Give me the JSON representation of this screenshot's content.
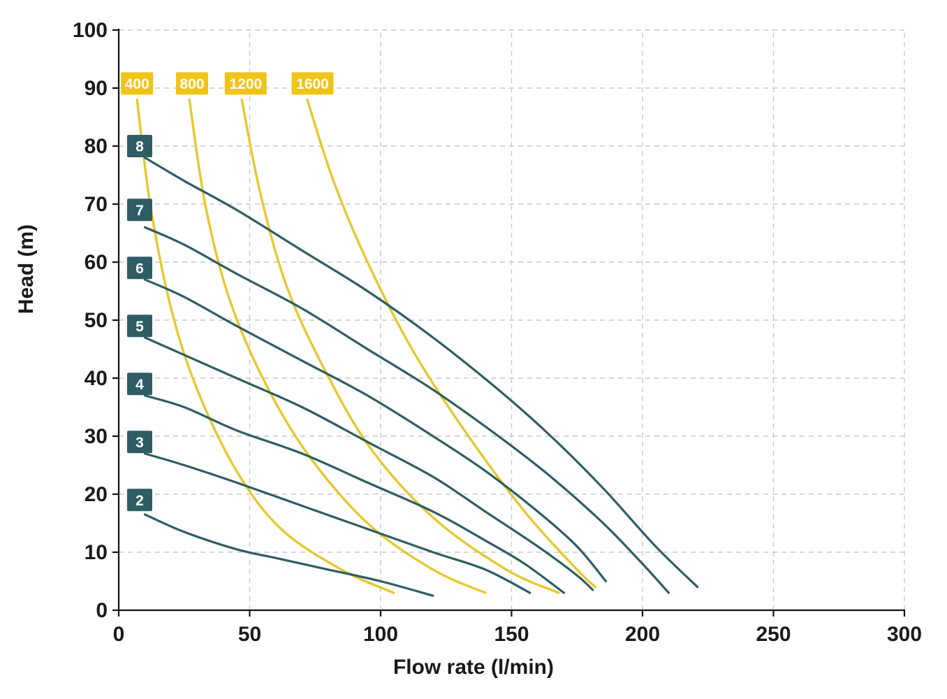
{
  "chart_data": {
    "type": "line",
    "title": "",
    "xlabel": "Flow rate (l/min)",
    "ylabel": "Head (m)",
    "xlim": [
      0,
      300
    ],
    "ylim": [
      0,
      100
    ],
    "xticks": [
      0,
      50,
      100,
      150,
      200,
      250,
      300
    ],
    "yticks": [
      0,
      10,
      20,
      30,
      40,
      50,
      60,
      70,
      80,
      90,
      100
    ],
    "grid": "dashed",
    "legend_position": "none",
    "colors": {
      "teal_curve": "#2e5d63",
      "teal_label_bg": "#2e5d63",
      "teal_label_text": "#ffffff",
      "yellow_curve": "#e6c82e",
      "yellow_label_bg": "#f0c419",
      "yellow_label_text": "#ffffff",
      "grid": "#c9c9c9",
      "axis": "#111111",
      "tick_text": "#1a1a1a",
      "background": "#ffffff"
    },
    "series": [
      {
        "name": "400",
        "group": "yellow",
        "label": "400",
        "label_at": {
          "x": 7,
          "y": 90.8
        },
        "points": [
          [
            7,
            88
          ],
          [
            12,
            70
          ],
          [
            20,
            52
          ],
          [
            30,
            38
          ],
          [
            45,
            24
          ],
          [
            62,
            14
          ],
          [
            85,
            7
          ],
          [
            105,
            3
          ]
        ]
      },
      {
        "name": "800",
        "group": "yellow",
        "label": "800",
        "label_at": {
          "x": 28,
          "y": 90.8
        },
        "points": [
          [
            27,
            88
          ],
          [
            33,
            70
          ],
          [
            42,
            54
          ],
          [
            55,
            40
          ],
          [
            72,
            27
          ],
          [
            95,
            15
          ],
          [
            120,
            7
          ],
          [
            140,
            3
          ]
        ]
      },
      {
        "name": "1200",
        "group": "yellow",
        "label": "1200",
        "label_at": {
          "x": 48.5,
          "y": 90.8
        },
        "points": [
          [
            47,
            88
          ],
          [
            54,
            72
          ],
          [
            64,
            56
          ],
          [
            78,
            42
          ],
          [
            96,
            28
          ],
          [
            120,
            16
          ],
          [
            148,
            7
          ],
          [
            168,
            3
          ]
        ]
      },
      {
        "name": "1600",
        "group": "yellow",
        "label": "1600",
        "label_at": {
          "x": 74,
          "y": 90.8
        },
        "points": [
          [
            72,
            88
          ],
          [
            82,
            74
          ],
          [
            95,
            60
          ],
          [
            112,
            45
          ],
          [
            132,
            31
          ],
          [
            155,
            17
          ],
          [
            175,
            7
          ],
          [
            182,
            4
          ]
        ]
      },
      {
        "name": "8",
        "group": "teal",
        "label": "8",
        "label_at": {
          "x": 8,
          "y": 80
        },
        "points": [
          [
            10,
            78
          ],
          [
            25,
            74
          ],
          [
            45,
            69
          ],
          [
            70,
            62
          ],
          [
            95,
            55
          ],
          [
            120,
            47
          ],
          [
            145,
            38
          ],
          [
            165,
            30
          ],
          [
            185,
            21
          ],
          [
            205,
            11
          ],
          [
            221,
            4
          ]
        ]
      },
      {
        "name": "7",
        "group": "teal",
        "label": "7",
        "label_at": {
          "x": 8,
          "y": 69
        },
        "points": [
          [
            10,
            66
          ],
          [
            25,
            63
          ],
          [
            45,
            58
          ],
          [
            70,
            52
          ],
          [
            95,
            45
          ],
          [
            120,
            38
          ],
          [
            145,
            30
          ],
          [
            165,
            23
          ],
          [
            185,
            15
          ],
          [
            200,
            8
          ],
          [
            210,
            3
          ]
        ]
      },
      {
        "name": "6",
        "group": "teal",
        "label": "6",
        "label_at": {
          "x": 8,
          "y": 59
        },
        "points": [
          [
            10,
            57
          ],
          [
            25,
            54
          ],
          [
            45,
            49
          ],
          [
            70,
            43
          ],
          [
            95,
            37
          ],
          [
            120,
            30
          ],
          [
            140,
            24
          ],
          [
            160,
            17
          ],
          [
            175,
            11
          ],
          [
            186,
            5
          ]
        ]
      },
      {
        "name": "5",
        "group": "teal",
        "label": "5",
        "label_at": {
          "x": 8,
          "y": 49
        },
        "points": [
          [
            10,
            47
          ],
          [
            25,
            44
          ],
          [
            45,
            40
          ],
          [
            70,
            35
          ],
          [
            95,
            29
          ],
          [
            120,
            23
          ],
          [
            140,
            17
          ],
          [
            160,
            11
          ],
          [
            175,
            6
          ],
          [
            181,
            3.5
          ]
        ]
      },
      {
        "name": "4",
        "group": "teal",
        "label": "4",
        "label_at": {
          "x": 8,
          "y": 39
        },
        "points": [
          [
            10,
            37
          ],
          [
            25,
            35
          ],
          [
            45,
            31
          ],
          [
            70,
            27
          ],
          [
            95,
            22
          ],
          [
            120,
            17
          ],
          [
            140,
            12
          ],
          [
            155,
            8
          ],
          [
            170,
            3
          ]
        ]
      },
      {
        "name": "3",
        "group": "teal",
        "label": "3",
        "label_at": {
          "x": 8,
          "y": 29
        },
        "points": [
          [
            10,
            27
          ],
          [
            25,
            25
          ],
          [
            45,
            22
          ],
          [
            70,
            18
          ],
          [
            95,
            14
          ],
          [
            120,
            10
          ],
          [
            140,
            7
          ],
          [
            157,
            3
          ]
        ]
      },
      {
        "name": "2",
        "group": "teal",
        "label": "2",
        "label_at": {
          "x": 8,
          "y": 19
        },
        "points": [
          [
            10,
            16.5
          ],
          [
            25,
            13.5
          ],
          [
            45,
            10.5
          ],
          [
            60,
            9
          ],
          [
            80,
            7
          ],
          [
            100,
            5
          ],
          [
            120,
            2.5
          ]
        ]
      }
    ]
  }
}
